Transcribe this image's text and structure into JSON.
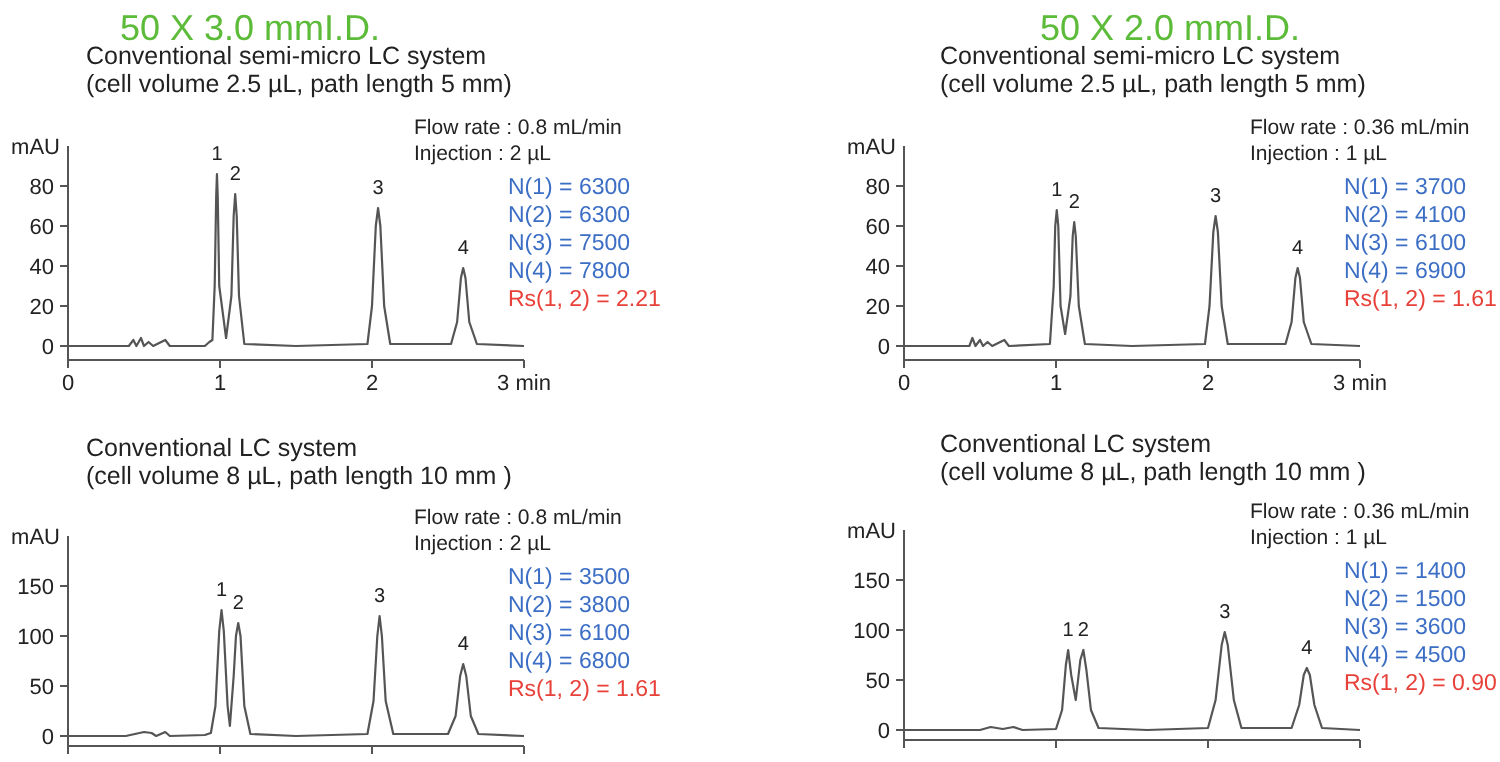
{
  "chart_data": [
    {
      "type": "line",
      "title": "50 X 3.0 mmI.D.",
      "subtitle": "Conventional semi-micro LC system\n(cell volume 2.5 µL, path length 5 mm)",
      "ylabel": "mAU",
      "xlim": [
        0,
        3
      ],
      "ylim": [
        -7,
        100
      ],
      "xticks": [
        0,
        1,
        2,
        {
          "value": 3,
          "label": "3 min"
        }
      ],
      "yticks": [
        0,
        20,
        40,
        60,
        80
      ],
      "series": [
        {
          "color": "#555555",
          "x": [
            0,
            0.4,
            0.43,
            0.45,
            0.48,
            0.5,
            0.53,
            0.56,
            0.64,
            0.67,
            0.9,
            0.93,
            0.95,
            0.965,
            0.975,
            0.98,
            0.985,
            0.995,
            1.04,
            1.075,
            1.09,
            1.1,
            1.11,
            1.125,
            1.16,
            1.5,
            1.97,
            2.0,
            2.025,
            2.04,
            2.055,
            2.08,
            2.12,
            2.52,
            2.56,
            2.585,
            2.6,
            2.615,
            2.64,
            2.69,
            3
          ],
          "values": [
            0,
            0,
            3,
            0,
            4,
            0,
            2,
            0,
            3,
            0,
            0,
            2,
            3,
            30,
            75,
            86,
            75,
            30,
            4,
            25,
            65,
            76,
            65,
            25,
            1,
            0,
            1,
            20,
            60,
            69,
            60,
            20,
            1,
            1,
            12,
            34,
            39,
            34,
            12,
            1,
            0
          ]
        }
      ],
      "annotations": [
        "Flow rate : 0.8 mL/min",
        "Injection  : 2 µL",
        "N(1) = 6300",
        "N(2) = 6300",
        "N(3) = 7500",
        "N(4) = 7800",
        "Rs(1, 2) = 2.21",
        {
          "text": "1",
          "x": 0.98,
          "y": 86
        },
        {
          "text": "2",
          "x": 1.1,
          "y": 76
        },
        {
          "text": "3",
          "x": 2.04,
          "y": 69
        },
        {
          "text": "4",
          "x": 2.6,
          "y": 39
        }
      ]
    },
    {
      "type": "line",
      "title": "50 X 2.0 mmI.D.",
      "subtitle": "Conventional semi-micro LC system\n(cell volume  2.5 µL, path length 5 mm)",
      "ylabel": "mAU",
      "xlim": [
        0,
        3
      ],
      "ylim": [
        -7,
        100
      ],
      "xticks": [
        0,
        1,
        2,
        {
          "value": 3,
          "label": "3 min"
        }
      ],
      "yticks": [
        0,
        20,
        40,
        60,
        80
      ],
      "series": [
        {
          "color": "#555555",
          "x": [
            0,
            0.43,
            0.45,
            0.47,
            0.5,
            0.52,
            0.55,
            0.58,
            0.66,
            0.69,
            0.96,
            0.985,
            0.995,
            1.005,
            1.015,
            1.03,
            1.06,
            1.095,
            1.11,
            1.12,
            1.13,
            1.15,
            1.19,
            1.5,
            1.98,
            2.01,
            2.035,
            2.05,
            2.065,
            2.09,
            2.13,
            2.51,
            2.55,
            2.575,
            2.59,
            2.605,
            2.63,
            2.68,
            3
          ],
          "values": [
            0,
            0,
            4,
            0,
            3,
            0,
            2,
            0,
            3,
            0,
            1,
            30,
            60,
            68,
            60,
            20,
            6,
            25,
            55,
            62,
            55,
            20,
            1,
            0,
            1,
            20,
            57,
            65,
            57,
            20,
            1,
            1,
            12,
            34,
            39,
            34,
            12,
            1,
            0
          ]
        }
      ],
      "annotations": [
        "Flow rate : 0.36 mL/min",
        "Injection  : 1 µL",
        "N(1) = 3700",
        "N(2) = 4100",
        "N(3) = 6100",
        "N(4) = 6900",
        "Rs(1, 2) = 1.61",
        {
          "text": "1",
          "x": 1.005,
          "y": 68
        },
        {
          "text": "2",
          "x": 1.12,
          "y": 62
        },
        {
          "text": "3",
          "x": 2.05,
          "y": 65
        },
        {
          "text": "4",
          "x": 2.59,
          "y": 39
        }
      ]
    },
    {
      "type": "line",
      "subtitle": "Conventional LC system\n(cell volume  8 µL, path length 10 mm  )",
      "ylabel": "mAU",
      "xlim": [
        0,
        3
      ],
      "ylim": [
        -10,
        200
      ],
      "xticks": [
        {
          "value": 0,
          "label": null
        },
        {
          "value": 1,
          "label": null
        },
        {
          "value": 2,
          "label": null
        },
        {
          "value": 3,
          "label": null
        }
      ],
      "yticks": [
        0,
        50,
        100,
        150
      ],
      "tick_labels": "y",
      "series": [
        {
          "color": "#555555",
          "x": [
            0,
            0.38,
            0.5,
            0.55,
            0.58,
            0.64,
            0.67,
            0.9,
            0.94,
            0.97,
            0.995,
            1.01,
            1.025,
            1.05,
            1.065,
            1.09,
            1.105,
            1.12,
            1.135,
            1.16,
            1.2,
            1.5,
            1.97,
            2.01,
            2.035,
            2.05,
            2.065,
            2.09,
            2.14,
            2.5,
            2.55,
            2.58,
            2.6,
            2.62,
            2.65,
            2.7,
            3
          ],
          "values": [
            0,
            0,
            4,
            3,
            0,
            4,
            0,
            1,
            3,
            30,
            105,
            126,
            105,
            30,
            10,
            60,
            100,
            113,
            100,
            30,
            2,
            0,
            2,
            35,
            100,
            120,
            100,
            35,
            2,
            2,
            20,
            60,
            72,
            60,
            20,
            2,
            0
          ]
        }
      ],
      "annotations": [
        "Flow rate : 0.8 mL/min",
        "Injection  : 2 µL",
        "N(1) = 3500",
        "N(2) = 3800",
        "N(3) = 6100",
        "N(4) = 6800",
        "Rs(1, 2) = 1.61",
        {
          "text": "1",
          "x": 1.01,
          "y": 126
        },
        {
          "text": "2",
          "x": 1.12,
          "y": 113
        },
        {
          "text": "3",
          "x": 2.05,
          "y": 120
        },
        {
          "text": "4",
          "x": 2.6,
          "y": 72
        }
      ]
    },
    {
      "type": "line",
      "subtitle": "Conventional LC system\n(cell volume  8 µL, path length 10 mm  )",
      "ylabel": "mAU",
      "xlim": [
        0,
        3
      ],
      "ylim": [
        -10,
        200
      ],
      "xticks": [
        {
          "value": 0,
          "label": null
        },
        {
          "value": 1,
          "label": null
        },
        {
          "value": 2,
          "label": null
        },
        {
          "value": 3,
          "label": null
        }
      ],
      "yticks": [
        0,
        50,
        100,
        150
      ],
      "tick_labels": "y",
      "series": [
        {
          "color": "#555555",
          "x": [
            0,
            0.5,
            0.57,
            0.65,
            0.72,
            0.78,
            1.0,
            1.04,
            1.065,
            1.08,
            1.1,
            1.13,
            1.16,
            1.18,
            1.2,
            1.23,
            1.28,
            1.6,
            2.0,
            2.05,
            2.09,
            2.11,
            2.13,
            2.17,
            2.22,
            2.55,
            2.6,
            2.63,
            2.65,
            2.67,
            2.7,
            2.75,
            3
          ],
          "values": [
            0,
            0,
            3,
            1,
            3,
            0,
            1,
            20,
            65,
            80,
            55,
            30,
            70,
            80,
            60,
            20,
            2,
            0,
            2,
            30,
            85,
            98,
            85,
            30,
            2,
            2,
            25,
            55,
            62,
            55,
            25,
            2,
            0
          ]
        }
      ],
      "annotations": [
        "Flow rate : 0.36 mL/min",
        "Injection  : 1 µL",
        "N(1) = 1400",
        "N(2) = 1500",
        "N(3) = 3600",
        "N(4) = 4500",
        "Rs(1, 2) = 0.90",
        {
          "text": "1",
          "x": 1.08,
          "y": 80
        },
        {
          "text": "2",
          "x": 1.18,
          "y": 80
        },
        {
          "text": "3",
          "x": 2.11,
          "y": 98
        },
        {
          "text": "4",
          "x": 2.65,
          "y": 62
        }
      ]
    }
  ]
}
